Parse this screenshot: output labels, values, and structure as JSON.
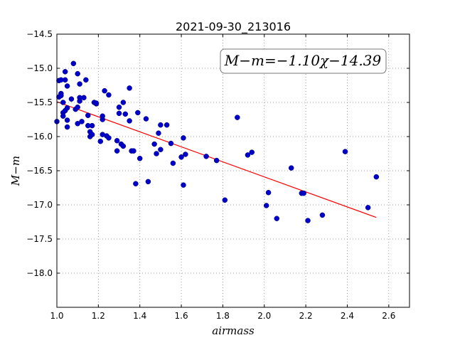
{
  "chart_data": {
    "type": "scatter",
    "title": "2021-09-30_213016",
    "xlabel": "airmass",
    "ylabel": "M−m",
    "annotation": "M−m=−1.10χ−14.39",
    "xlim": [
      1.0,
      2.7
    ],
    "ylim": [
      -14.5,
      -18.5
    ],
    "y_inverted": true,
    "grid": true,
    "x_ticks": [
      "1.0",
      "1.2",
      "1.4",
      "1.6",
      "1.8",
      "2.0",
      "2.2",
      "2.4",
      "2.6"
    ],
    "y_ticks": [
      "−14.5",
      "−15.0",
      "−15.5",
      "−16.0",
      "−16.5",
      "−17.0",
      "−17.5",
      "−18.0"
    ],
    "x_tick_values": [
      1.0,
      1.2,
      1.4,
      1.6,
      1.8,
      2.0,
      2.2,
      2.4,
      2.6
    ],
    "y_tick_values": [
      -14.5,
      -15.0,
      -15.5,
      -16.0,
      -16.5,
      -17.0,
      -17.5,
      -18.0
    ],
    "fit": {
      "slope": -1.1,
      "intercept": -14.39,
      "x_range": [
        1.0,
        2.54
      ],
      "color": "#ff0000"
    },
    "colors": {
      "points": "#0000cc",
      "fit_line": "#ff0000",
      "grid": "#888888"
    },
    "series": [
      {
        "points": [
          [
            1.0,
            -15.78
          ],
          [
            1.01,
            -15.42
          ],
          [
            1.01,
            -15.18
          ],
          [
            1.02,
            -15.37
          ],
          [
            1.02,
            -15.4
          ],
          [
            1.02,
            -15.17
          ],
          [
            1.03,
            -15.65
          ],
          [
            1.03,
            -15.5
          ],
          [
            1.03,
            -15.7
          ],
          [
            1.04,
            -15.05
          ],
          [
            1.04,
            -15.17
          ],
          [
            1.04,
            -15.62
          ],
          [
            1.05,
            -15.58
          ],
          [
            1.05,
            -15.76
          ],
          [
            1.05,
            -15.86
          ],
          [
            1.05,
            -15.26
          ],
          [
            1.07,
            -15.45
          ],
          [
            1.08,
            -14.93
          ],
          [
            1.09,
            -15.6
          ],
          [
            1.1,
            -15.08
          ],
          [
            1.1,
            -15.57
          ],
          [
            1.1,
            -15.81
          ],
          [
            1.11,
            -15.23
          ],
          [
            1.11,
            -15.43
          ],
          [
            1.11,
            -15.48
          ],
          [
            1.12,
            -15.78
          ],
          [
            1.13,
            -15.43
          ],
          [
            1.14,
            -15.17
          ],
          [
            1.15,
            -15.84
          ],
          [
            1.15,
            -15.69
          ],
          [
            1.16,
            -15.93
          ],
          [
            1.16,
            -16.0
          ],
          [
            1.17,
            -15.97
          ],
          [
            1.17,
            -15.84
          ],
          [
            1.18,
            -15.5
          ],
          [
            1.19,
            -15.52
          ],
          [
            1.19,
            -15.51
          ],
          [
            1.21,
            -16.07
          ],
          [
            1.22,
            -15.7
          ],
          [
            1.22,
            -15.75
          ],
          [
            1.22,
            -15.97
          ],
          [
            1.23,
            -15.33
          ],
          [
            1.24,
            -15.99
          ],
          [
            1.25,
            -16.02
          ],
          [
            1.25,
            -15.39
          ],
          [
            1.29,
            -16.06
          ],
          [
            1.29,
            -16.21
          ],
          [
            1.3,
            -15.57
          ],
          [
            1.3,
            -15.66
          ],
          [
            1.31,
            -16.11
          ],
          [
            1.32,
            -16.14
          ],
          [
            1.32,
            -15.5
          ],
          [
            1.33,
            -15.67
          ],
          [
            1.35,
            -15.77
          ],
          [
            1.35,
            -15.29
          ],
          [
            1.36,
            -16.21
          ],
          [
            1.37,
            -16.21
          ],
          [
            1.38,
            -16.69
          ],
          [
            1.39,
            -15.65
          ],
          [
            1.4,
            -16.32
          ],
          [
            1.43,
            -15.74
          ],
          [
            1.44,
            -16.66
          ],
          [
            1.47,
            -16.11
          ],
          [
            1.48,
            -16.25
          ],
          [
            1.49,
            -15.95
          ],
          [
            1.5,
            -16.19
          ],
          [
            1.5,
            -15.83
          ],
          [
            1.53,
            -15.83
          ],
          [
            1.55,
            -16.1
          ],
          [
            1.56,
            -16.39
          ],
          [
            1.6,
            -16.3
          ],
          [
            1.61,
            -16.71
          ],
          [
            1.61,
            -16.02
          ],
          [
            1.62,
            -16.26
          ],
          [
            1.72,
            -16.29
          ],
          [
            1.77,
            -16.35
          ],
          [
            1.81,
            -16.93
          ],
          [
            1.87,
            -15.72
          ],
          [
            1.92,
            -16.27
          ],
          [
            1.94,
            -16.23
          ],
          [
            2.01,
            -17.01
          ],
          [
            2.02,
            -16.82
          ],
          [
            2.06,
            -17.2
          ],
          [
            2.13,
            -16.46
          ],
          [
            2.18,
            -16.83
          ],
          [
            2.19,
            -16.83
          ],
          [
            2.21,
            -17.23
          ],
          [
            2.28,
            -17.15
          ],
          [
            2.39,
            -16.22
          ],
          [
            2.5,
            -17.04
          ],
          [
            2.54,
            -16.59
          ]
        ]
      }
    ]
  }
}
